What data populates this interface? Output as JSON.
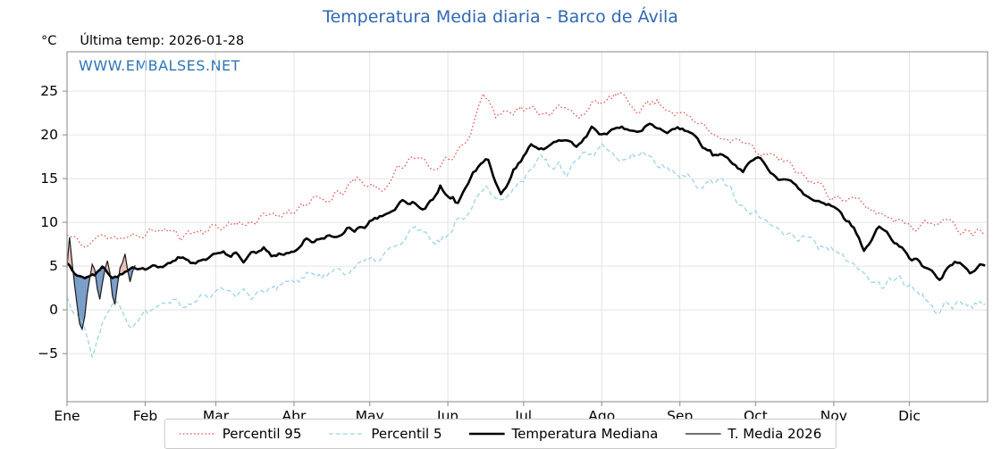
{
  "header": {
    "unit_label": "°C",
    "last_temp_label": "Última temp: 2026-01-28"
  },
  "watermark": "WWW.EMBALSES.NET",
  "colors": {
    "title": "#3168b1",
    "watermark": "#2e75b6",
    "grid": "#e4e4e4",
    "axis": "#9a9a9a",
    "tick_text": "#000000"
  },
  "chart_data": {
    "type": "line",
    "title": "Temperatura Media diaria - Barco de Ávila",
    "ylabel": "°C",
    "ylim": [
      -10.5,
      29.5
    ],
    "yticks": [
      -5,
      0,
      5,
      10,
      15,
      20,
      25
    ],
    "x_tick_labels": [
      "Ene",
      "Feb",
      "Mar",
      "Abr",
      "May",
      "Jun",
      "Jul",
      "Ago",
      "Sep",
      "Oct",
      "Nov",
      "Dic"
    ],
    "month_start_days": [
      0,
      31,
      59,
      90,
      120,
      151,
      181,
      212,
      243,
      273,
      304,
      334
    ],
    "days_in_year": 365,
    "grid": true,
    "legend_position": "bottom",
    "fills": {
      "above_color": "#dd8877",
      "below_color": "#4a7bb5"
    },
    "series": [
      {
        "name": "Percentil 95",
        "color": "#dd4444",
        "style": "dotted",
        "width": 1.2,
        "noise": 1.0,
        "seed": 11,
        "x": [
          0,
          8,
          15,
          25,
          35,
          45,
          55,
          65,
          75,
          85,
          95,
          105,
          115,
          125,
          132,
          140,
          147,
          154,
          160,
          165,
          170,
          178,
          186,
          194,
          202,
          210,
          218,
          226,
          234,
          242,
          250,
          258,
          266,
          274,
          282,
          290,
          298,
          306,
          314,
          322,
          330,
          338,
          346,
          354,
          364
        ],
        "y": [
          8.5,
          7.2,
          8.8,
          8.0,
          9.2,
          8.6,
          9.2,
          9.8,
          10.2,
          11.0,
          12.2,
          12.6,
          14.8,
          13.8,
          16.2,
          17.8,
          15.6,
          18.0,
          20.5,
          24.8,
          22.3,
          23.2,
          22.6,
          23.0,
          22.4,
          23.4,
          24.5,
          23.2,
          23.8,
          22.6,
          21.4,
          20.2,
          19.2,
          18.2,
          17.2,
          15.8,
          14.2,
          12.8,
          12.2,
          11.0,
          10.4,
          9.6,
          10.2,
          9.4,
          9.0
        ]
      },
      {
        "name": "Percentil 5",
        "color": "#9ed2e6",
        "style": "dashed",
        "width": 1.3,
        "noise": 1.1,
        "seed": 22,
        "x": [
          0,
          5,
          10,
          15,
          20,
          26,
          31,
          40,
          48,
          56,
          64,
          72,
          80,
          90,
          100,
          110,
          120,
          130,
          138,
          145,
          152,
          160,
          166,
          172,
          180,
          188,
          196,
          204,
          212,
          220,
          228,
          236,
          244,
          252,
          260,
          268,
          276,
          284,
          292,
          300,
          308,
          316,
          324,
          331,
          338,
          344,
          350,
          357,
          364
        ],
        "y": [
          1.5,
          -1.0,
          -4.5,
          -0.5,
          0.8,
          -1.8,
          0.2,
          1.6,
          0.6,
          1.8,
          2.4,
          1.8,
          2.6,
          3.2,
          4.2,
          4.6,
          5.4,
          7.0,
          9.4,
          7.4,
          9.0,
          12.0,
          14.4,
          12.4,
          15.2,
          17.4,
          15.8,
          17.2,
          18.2,
          17.0,
          17.8,
          16.8,
          15.4,
          14.0,
          15.4,
          11.2,
          10.6,
          9.2,
          8.0,
          7.4,
          5.6,
          4.2,
          2.6,
          3.6,
          1.6,
          -0.4,
          1.0,
          0.4,
          1.2
        ]
      },
      {
        "name": "Temperatura Mediana",
        "color": "#000000",
        "style": "solid",
        "width": 2.6,
        "noise": 0.65,
        "seed": 33,
        "x": [
          0,
          4,
          8,
          14,
          20,
          26,
          31,
          38,
          46,
          54,
          62,
          70,
          78,
          86,
          94,
          102,
          110,
          118,
          126,
          134,
          142,
          148,
          155,
          161,
          167,
          172,
          178,
          184,
          190,
          196,
          202,
          208,
          214,
          220,
          226,
          232,
          238,
          244,
          250,
          256,
          262,
          268,
          274,
          280,
          286,
          292,
          298,
          304,
          310,
          316,
          322,
          328,
          334,
          340,
          346,
          352,
          358,
          364
        ],
        "y": [
          5.2,
          4.0,
          3.4,
          4.6,
          3.8,
          4.6,
          4.4,
          5.2,
          5.6,
          5.8,
          6.2,
          6.0,
          6.6,
          6.2,
          7.6,
          8.0,
          9.0,
          9.6,
          10.8,
          12.6,
          11.6,
          13.8,
          12.2,
          15.8,
          17.2,
          13.0,
          16.4,
          18.8,
          18.4,
          19.6,
          18.6,
          20.8,
          20.0,
          21.0,
          20.4,
          21.4,
          20.2,
          20.8,
          19.2,
          18.0,
          17.2,
          15.6,
          17.8,
          15.0,
          14.6,
          13.4,
          12.6,
          11.4,
          10.2,
          7.2,
          9.4,
          8.0,
          6.2,
          5.0,
          3.6,
          5.4,
          4.6,
          5.3
        ]
      },
      {
        "name": "T. Media 2026",
        "color": "#1a1a1a",
        "style": "solid",
        "width": 1.2,
        "noise": 0,
        "seed": 44,
        "x": [
          0,
          1,
          2,
          3,
          4,
          5,
          6,
          7,
          8,
          9,
          10,
          11,
          12,
          13,
          14,
          15,
          16,
          17,
          18,
          19,
          20,
          21,
          22,
          23,
          24,
          25,
          26,
          27
        ],
        "y": [
          5.0,
          8.3,
          5.5,
          2.8,
          0.5,
          -1.6,
          -2.2,
          -0.8,
          1.8,
          3.6,
          5.2,
          4.6,
          2.4,
          1.2,
          3.0,
          4.6,
          5.6,
          4.2,
          1.6,
          0.6,
          2.8,
          4.8,
          5.4,
          6.4,
          4.6,
          3.2,
          4.4,
          5.1
        ]
      }
    ]
  },
  "legend": {
    "entries": [
      {
        "label": "Percentil 95"
      },
      {
        "label": "Percentil 5"
      },
      {
        "label": "Temperatura Mediana"
      },
      {
        "label": "T. Media 2026"
      }
    ]
  }
}
